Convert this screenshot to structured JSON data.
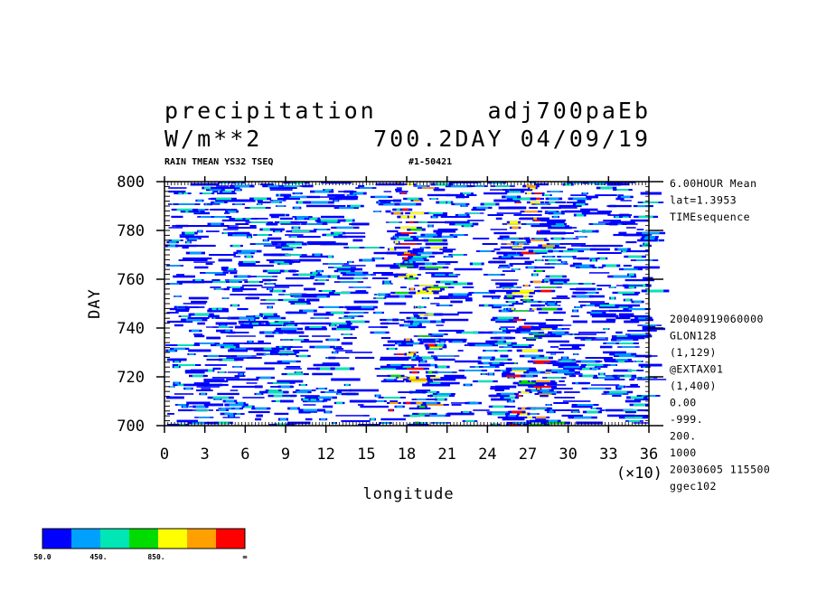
{
  "header": {
    "title_left": "precipitation",
    "title_right": "adj700paEb",
    "units": "W/m**2",
    "time_label": "700.2DAY 04/09/19",
    "sub_left": "RAIN TMEAN YS32 TSEQ",
    "sub_right": "#1-50421"
  },
  "side_info": {
    "top": [
      "6.00HOUR Mean",
      "lat=1.3953",
      "TIMEsequence"
    ],
    "bottom": [
      "20040919060000",
      "GLON128",
      "(1,129)",
      "@EXTAX01",
      "(1,400)",
      "0.00",
      "-999.",
      "200.",
      "1000",
      "20030605 115500",
      "ggec102"
    ]
  },
  "colorbar": {
    "colors": [
      "#0000ff",
      "#00a0ff",
      "#00e6b4",
      "#00dc00",
      "#ffff00",
      "#ffa000",
      "#ff0000"
    ],
    "labels": [
      "50.0",
      "450.",
      "850.",
      "∞"
    ]
  },
  "chart_data": {
    "type": "heatmap",
    "title": "precipitation",
    "xlabel": "longitude",
    "ylabel": "DAY",
    "x_multiplier_label": "(×10)",
    "xlim": [
      0,
      36
    ],
    "ylim": [
      700,
      800
    ],
    "x_tick_labels": [
      "0",
      "3",
      "6",
      "9",
      "12",
      "15",
      "18",
      "21",
      "24",
      "27",
      "30",
      "33",
      "36"
    ],
    "y_tick_labels": [
      "700",
      "720",
      "740",
      "760",
      "780",
      "800"
    ],
    "x_ticks": [
      0,
      3,
      6,
      9,
      12,
      15,
      18,
      21,
      24,
      27,
      30,
      33,
      36
    ],
    "y_ticks": [
      700,
      720,
      740,
      760,
      780,
      800
    ],
    "levels": [
      50,
      250,
      450,
      650,
      850,
      1050
    ]
  }
}
